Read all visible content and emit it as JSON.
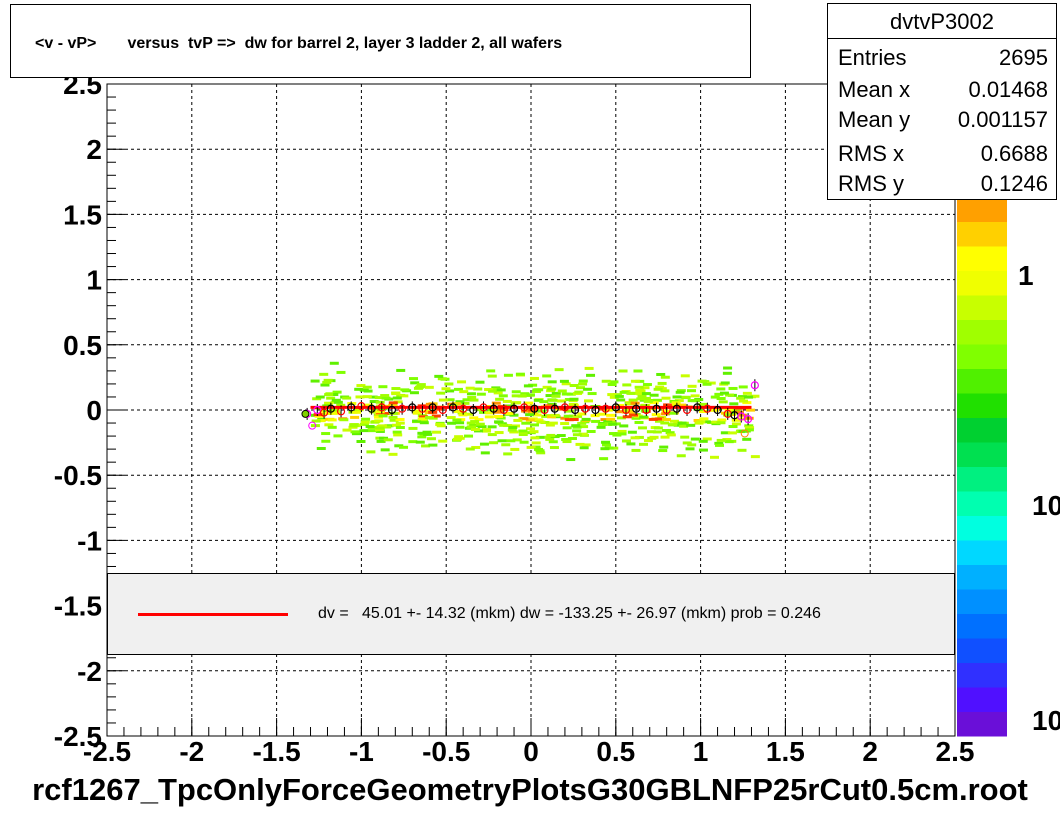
{
  "chart_data": {
    "type": "scatter",
    "title": "<v - vP>       versus  tvP =>  dw for barrel 2, layer 3 ladder 2, all wafers",
    "xlim": [
      -2.5,
      2.5
    ],
    "ylim": [
      -2.5,
      2.5
    ],
    "x_ticks": [
      "-2.5",
      "-2",
      "-1.5",
      "-1",
      "-0.5",
      "0",
      "0.5",
      "1",
      "1.5",
      "2",
      "2.5"
    ],
    "y_ticks": [
      "2.5",
      "2",
      "1.5",
      "1",
      "0.5",
      "0",
      "-0.5",
      "-1",
      "-1.5",
      "-2",
      "-2.5"
    ],
    "grid": true,
    "colorbar_labels": [
      "1",
      "10",
      "10"
    ],
    "series": [
      {
        "name": "profile",
        "x": [
          -1.32,
          -1.26,
          -1.22,
          -1.18,
          -1.12,
          -1.06,
          -1.0,
          -0.94,
          -0.88,
          -0.82,
          -0.76,
          -0.7,
          -0.64,
          -0.58,
          -0.52,
          -0.46,
          -0.4,
          -0.34,
          -0.28,
          -0.22,
          -0.16,
          -0.1,
          -0.04,
          0.02,
          0.08,
          0.14,
          0.2,
          0.26,
          0.32,
          0.38,
          0.44,
          0.5,
          0.56,
          0.62,
          0.68,
          0.74,
          0.8,
          0.86,
          0.92,
          0.98,
          1.04,
          1.1,
          1.16,
          1.2,
          1.24,
          1.28,
          1.32
        ],
        "y": [
          -0.03,
          0.0,
          -0.02,
          0.01,
          -0.01,
          0.02,
          0.03,
          0.01,
          0.02,
          0.0,
          0.01,
          0.02,
          0.01,
          0.02,
          0.0,
          0.02,
          0.01,
          0.0,
          0.02,
          0.01,
          0.0,
          0.01,
          0.02,
          0.01,
          0.0,
          0.01,
          0.02,
          0.0,
          0.01,
          0.0,
          0.01,
          0.02,
          0.0,
          0.01,
          0.0,
          0.01,
          0.0,
          0.01,
          0.0,
          0.02,
          0.01,
          0.0,
          -0.03,
          -0.04,
          -0.05,
          -0.07,
          0.19
        ]
      }
    ],
    "fit_line": {
      "x": [
        -1.3,
        1.3
      ],
      "y": [
        0.045,
        -0.133
      ]
    }
  },
  "stats": {
    "name": "dvtvP3002",
    "rows": [
      {
        "label": "Entries",
        "value": "2695"
      },
      {
        "label": "Mean x",
        "value": "0.01468"
      },
      {
        "label": "Mean y",
        "value": "0.001157"
      },
      {
        "label": "RMS x",
        "value": "0.6688"
      },
      {
        "label": "RMS y",
        "value": "0.1246"
      }
    ]
  },
  "legend": {
    "text": "dv =   45.01 +- 14.32 (mkm) dw = -133.25 +- 26.97 (mkm) prob = 0.246",
    "line_color": "#ff0000"
  },
  "footer": "rcf1267_TpcOnlyForceGeometryPlotsG30GBLNFP25rCut0.5cm.root"
}
